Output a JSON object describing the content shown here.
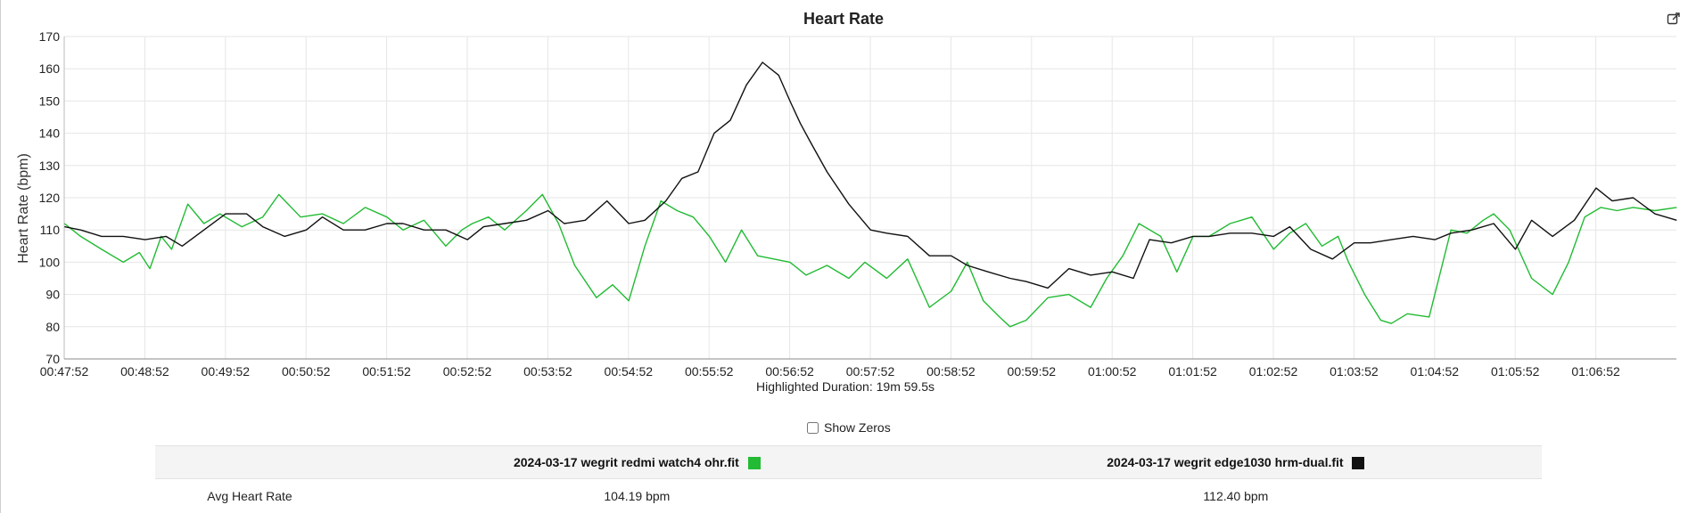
{
  "chart_data": {
    "type": "line",
    "title": "Heart Rate",
    "subtitle": "Highlighted Duration: 19m 59.5s",
    "ylabel": "Heart Rate (bpm)",
    "xlabel": "",
    "ylim": [
      70,
      170
    ],
    "yticks": [
      70,
      80,
      90,
      100,
      110,
      120,
      130,
      140,
      150,
      160,
      170
    ],
    "xlim_minutes": [
      47.867,
      67.867
    ],
    "xticks": [
      "00:47:52",
      "00:48:52",
      "00:49:52",
      "00:50:52",
      "00:51:52",
      "00:52:52",
      "00:53:52",
      "00:54:52",
      "00:55:52",
      "00:56:52",
      "00:57:52",
      "00:58:52",
      "00:59:52",
      "01:00:52",
      "01:01:52",
      "01:02:52",
      "01:03:52",
      "01:04:52",
      "01:05:52",
      "01:06:52"
    ],
    "grid": true,
    "series": [
      {
        "name": "2024-03-17 wegrit redmi watch4 ohr.fit",
        "color": "#22bb33",
        "x_minutes": [
          47.87,
          48.07,
          48.33,
          48.6,
          48.8,
          48.93,
          49.07,
          49.2,
          49.4,
          49.6,
          49.8,
          50.07,
          50.33,
          50.53,
          50.8,
          51.07,
          51.33,
          51.6,
          51.87,
          52.07,
          52.33,
          52.6,
          52.8,
          52.93,
          53.13,
          53.33,
          53.6,
          53.8,
          54.0,
          54.2,
          54.47,
          54.67,
          54.87,
          55.07,
          55.27,
          55.47,
          55.67,
          55.87,
          56.07,
          56.27,
          56.47,
          56.67,
          56.87,
          57.07,
          57.33,
          57.6,
          57.8,
          58.07,
          58.33,
          58.6,
          58.87,
          59.07,
          59.27,
          59.47,
          59.6,
          59.8,
          60.07,
          60.33,
          60.6,
          60.8,
          61.0,
          61.2,
          61.47,
          61.67,
          61.87,
          62.07,
          62.33,
          62.6,
          62.87,
          63.07,
          63.27,
          63.47,
          63.67,
          63.8,
          64.0,
          64.2,
          64.33,
          64.53,
          64.8,
          65.07,
          65.27,
          65.47,
          65.6,
          65.8,
          66.07,
          66.33,
          66.53,
          66.73,
          66.93,
          67.13,
          67.33,
          67.6,
          67.87
        ],
        "values": [
          112,
          108,
          104,
          100,
          103,
          98,
          108,
          104,
          118,
          112,
          115,
          111,
          114,
          121,
          114,
          115,
          112,
          117,
          114,
          110,
          113,
          105,
          110,
          112,
          114,
          110,
          116,
          121,
          112,
          99,
          89,
          93,
          88,
          105,
          119,
          116,
          114,
          108,
          100,
          110,
          102,
          101,
          100,
          96,
          99,
          95,
          100,
          95,
          101,
          86,
          91,
          100,
          88,
          83,
          80,
          82,
          89,
          90,
          86,
          95,
          102,
          112,
          108,
          97,
          108,
          108,
          112,
          114,
          104,
          109,
          112,
          105,
          108,
          100,
          90,
          82,
          81,
          84,
          83,
          110,
          109,
          113,
          115,
          110,
          95,
          90,
          100,
          114,
          117,
          116,
          117,
          116,
          117
        ]
      },
      {
        "name": "2024-03-17 wegrit edge1030 hrm-dual.fit",
        "color": "#111111",
        "x_minutes": [
          47.87,
          48.07,
          48.33,
          48.6,
          48.87,
          49.13,
          49.33,
          49.6,
          49.87,
          50.13,
          50.33,
          50.6,
          50.87,
          51.07,
          51.33,
          51.6,
          51.87,
          52.07,
          52.33,
          52.6,
          52.87,
          53.07,
          53.33,
          53.6,
          53.87,
          54.07,
          54.33,
          54.6,
          54.87,
          55.07,
          55.33,
          55.53,
          55.73,
          55.93,
          56.13,
          56.33,
          56.53,
          56.73,
          56.87,
          57.0,
          57.13,
          57.33,
          57.6,
          57.87,
          58.07,
          58.33,
          58.6,
          58.87,
          59.07,
          59.33,
          59.6,
          59.8,
          60.07,
          60.33,
          60.6,
          60.87,
          61.13,
          61.33,
          61.6,
          61.87,
          62.07,
          62.33,
          62.6,
          62.87,
          63.07,
          63.33,
          63.6,
          63.87,
          64.07,
          64.33,
          64.6,
          64.87,
          65.07,
          65.33,
          65.6,
          65.87,
          66.07,
          66.33,
          66.6,
          66.87,
          67.07,
          67.33,
          67.6,
          67.87
        ],
        "values": [
          111,
          110,
          108,
          108,
          107,
          108,
          105,
          110,
          115,
          115,
          111,
          108,
          110,
          114,
          110,
          110,
          112,
          112,
          110,
          110,
          107,
          111,
          112,
          113,
          116,
          112,
          113,
          119,
          112,
          113,
          119,
          126,
          128,
          140,
          144,
          155,
          162,
          158,
          150,
          143,
          137,
          128,
          118,
          110,
          109,
          108,
          102,
          102,
          99,
          97,
          95,
          94,
          92,
          98,
          96,
          97,
          95,
          107,
          106,
          108,
          108,
          109,
          109,
          108,
          111,
          104,
          101,
          106,
          106,
          107,
          108,
          107,
          109,
          110,
          112,
          104,
          113,
          108,
          113,
          123,
          119,
          120,
          115,
          113
        ]
      }
    ]
  },
  "controls": {
    "show_zeros_label": "Show Zeros",
    "show_zeros_checked": false
  },
  "summary": {
    "columns": [
      {
        "file": "2024-03-17 wegrit redmi watch4 ohr.fit",
        "color": "#22bb33"
      },
      {
        "file": "2024-03-17 wegrit edge1030 hrm-dual.fit",
        "color": "#111111"
      }
    ],
    "rows": [
      {
        "label": "Avg Heart Rate",
        "values": [
          "104.19 bpm",
          "112.40 bpm"
        ]
      }
    ]
  }
}
